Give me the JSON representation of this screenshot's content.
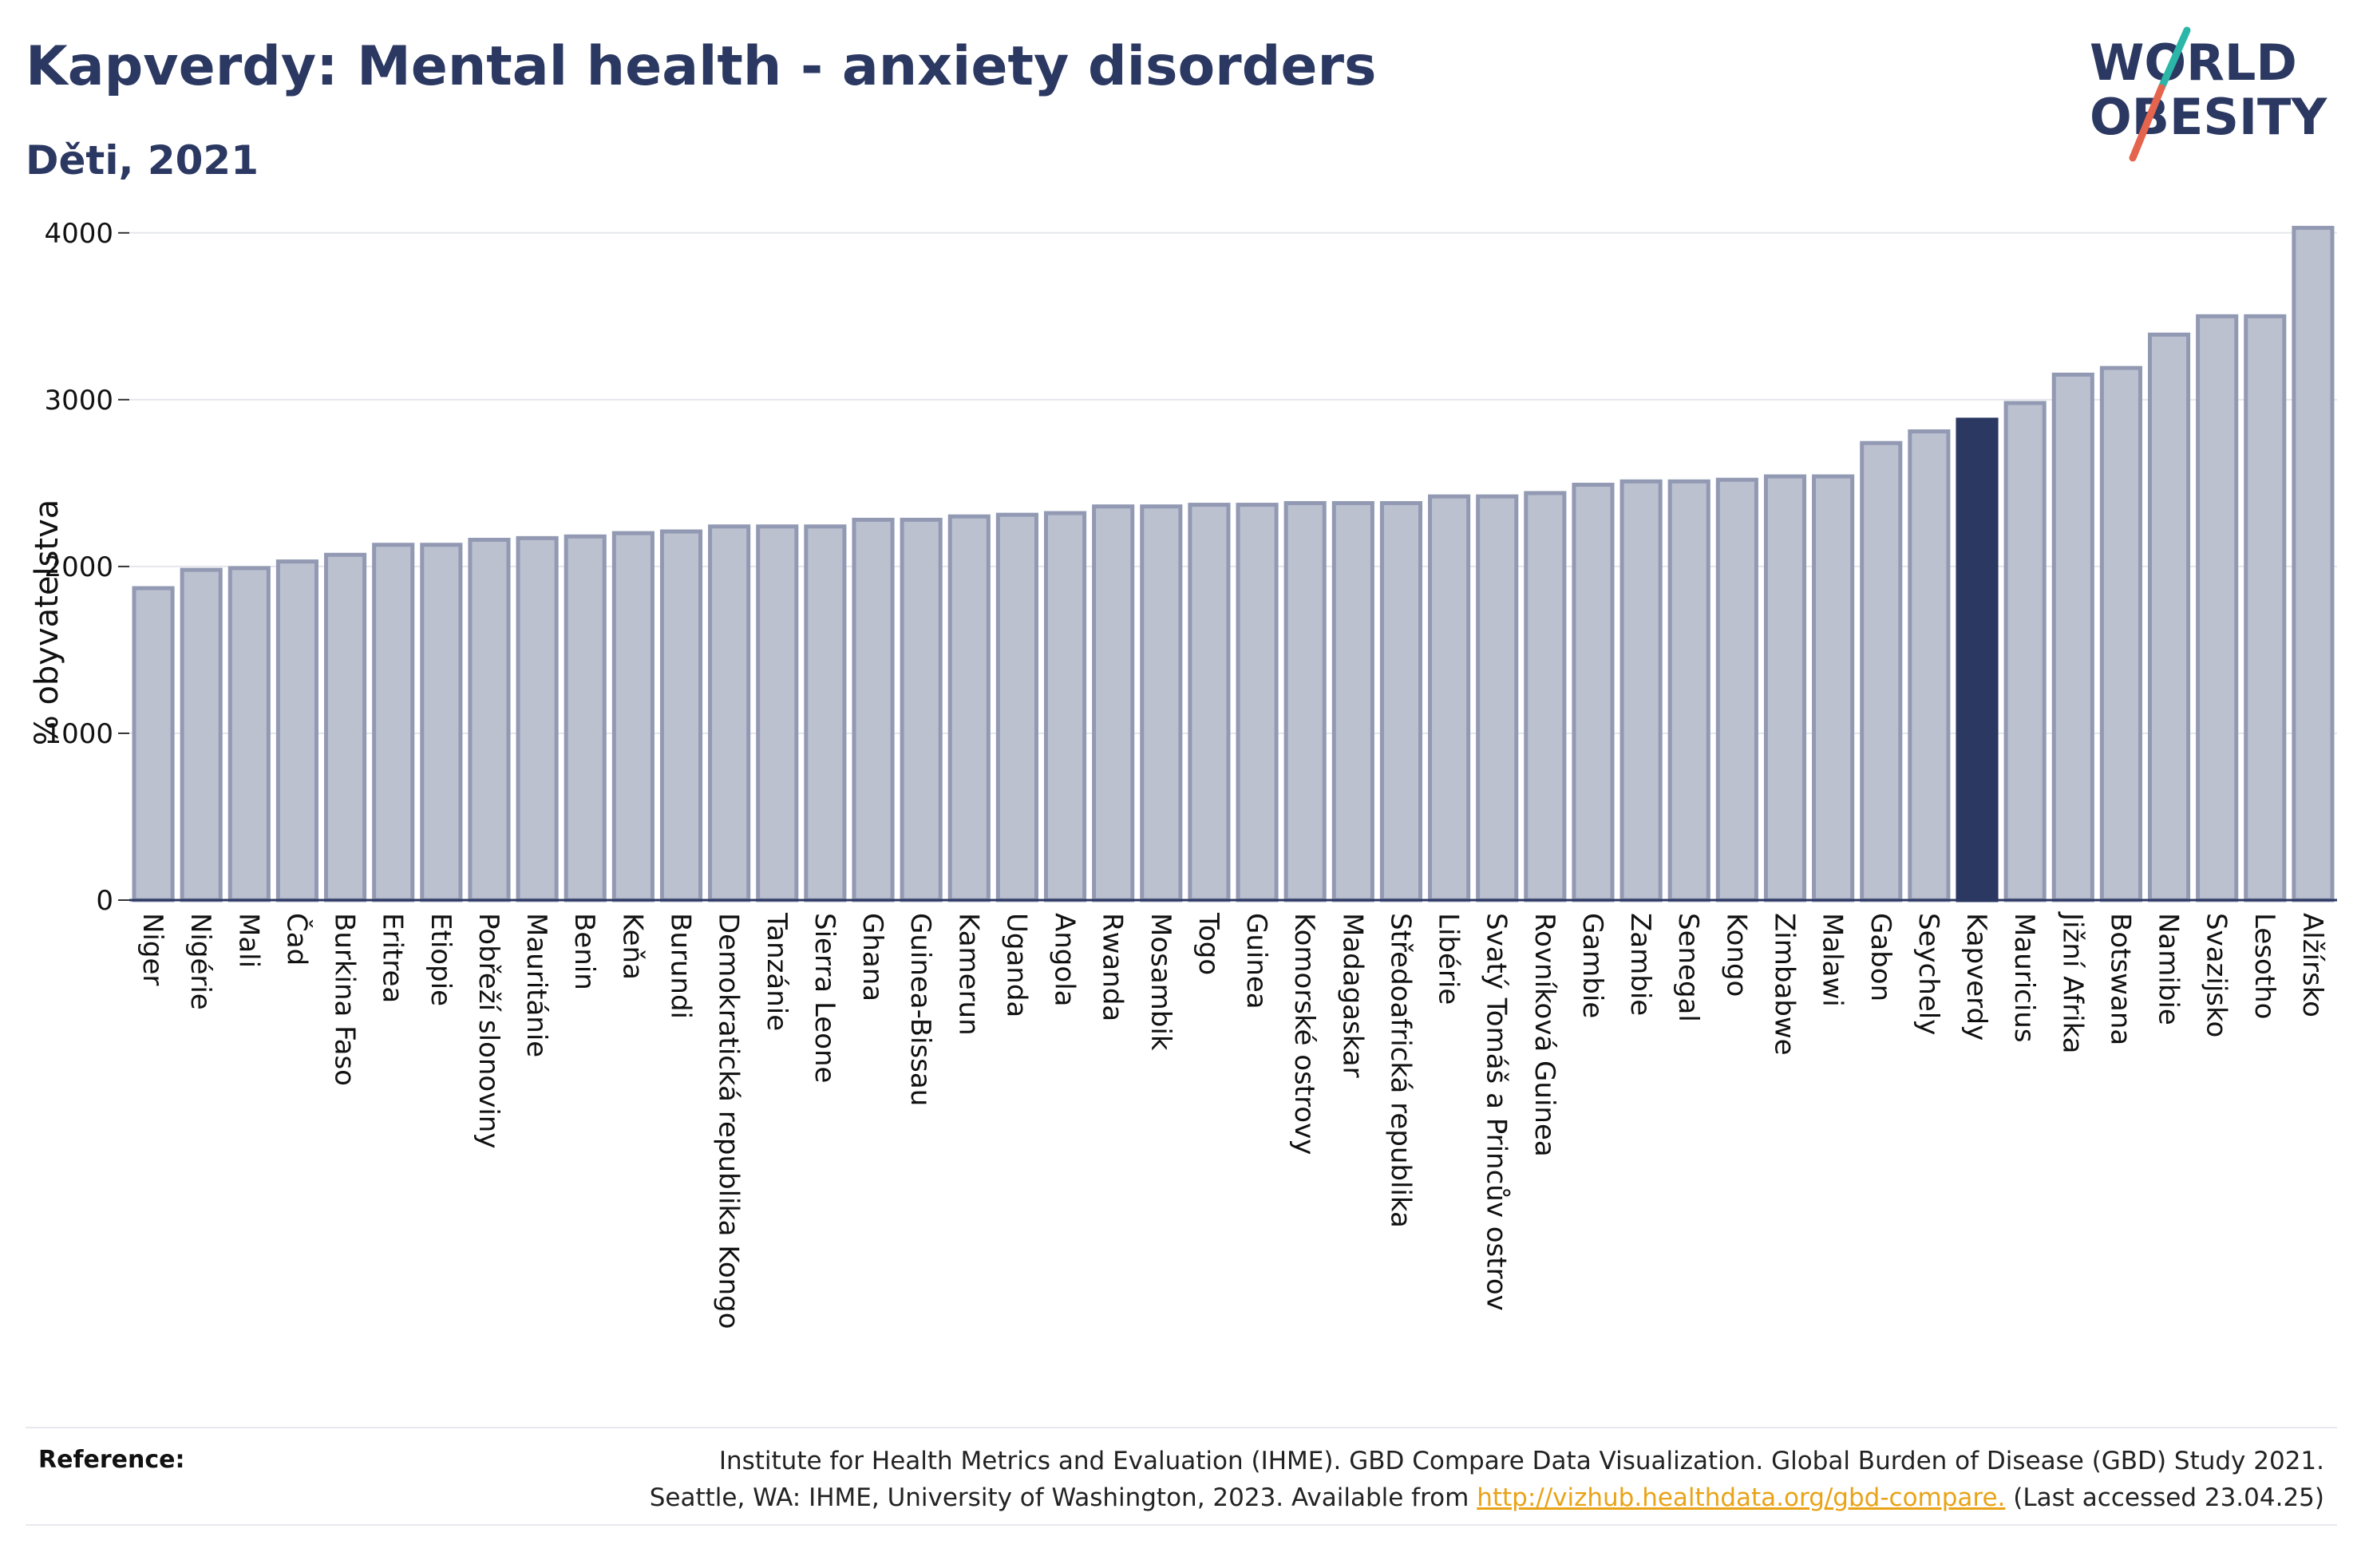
{
  "header": {
    "title": "Kapverdy: Mental health - anxiety disorders",
    "subtitle": "Děti, 2021"
  },
  "logo": {
    "line1": "WORLD",
    "line2": "OBESITY",
    "colors": {
      "text": "#2b3862",
      "slash_top": "#2bb6a8",
      "slash_bottom": "#e5644e"
    }
  },
  "chart_data": {
    "type": "bar",
    "ylabel": "% obyvatelstva",
    "ylim": [
      0,
      4200
    ],
    "yticks": [
      0,
      1000,
      2000,
      3000,
      4000
    ],
    "grid": true,
    "highlight": "Kapverdy",
    "colors": {
      "bar": "#bcc1d0",
      "bar_border": "#9299b2",
      "highlight": "#2b3862"
    },
    "categories": [
      "Niger",
      "Nigérie",
      "Mali",
      "Čad",
      "Burkina Faso",
      "Eritrea",
      "Etiopie",
      "Pobřeží slonoviny",
      "Mauritánie",
      "Benin",
      "Keňa",
      "Burundi",
      "Demokratická republika Kongo",
      "Tanzánie",
      "Sierra Leone",
      "Ghana",
      "Guinea-Bissau",
      "Kamerun",
      "Uganda",
      "Angola",
      "Rwanda",
      "Mosambik",
      "Togo",
      "Guinea",
      "Komorské ostrovy",
      "Madagaskar",
      "Středoafrická republika",
      "Libérie",
      "Svatý Tomáš a Princův ostrov",
      "Rovníková Guinea",
      "Gambie",
      "Zambie",
      "Senegal",
      "Kongo",
      "Zimbabwe",
      "Malawi",
      "Gabon",
      "Seychely",
      "Kapverdy",
      "Mauricius",
      "Jižní Afrika",
      "Botswana",
      "Namibie",
      "Svazijsko",
      "Lesotho",
      "Alžírsko"
    ],
    "values": [
      1870,
      1980,
      1990,
      2030,
      2070,
      2130,
      2130,
      2160,
      2170,
      2180,
      2200,
      2210,
      2240,
      2240,
      2240,
      2280,
      2280,
      2300,
      2310,
      2320,
      2360,
      2360,
      2370,
      2370,
      2380,
      2380,
      2380,
      2420,
      2420,
      2440,
      2490,
      2510,
      2510,
      2520,
      2540,
      2540,
      2740,
      2810,
      2880,
      2980,
      3150,
      3190,
      3390,
      3500,
      3500,
      4030
    ]
  },
  "reference": {
    "label": "Reference:",
    "line1": "Institute for Health Metrics and Evaluation (IHME). GBD Compare Data Visualization. Global Burden of Disease (GBD) Study 2021.",
    "line2_prefix": "Seattle, WA: IHME, University of Washington, 2023. Available from ",
    "link": "http://vizhub.healthdata.org/gbd-compare.",
    "line2_suffix": " (Last accessed 23.04.25)"
  }
}
